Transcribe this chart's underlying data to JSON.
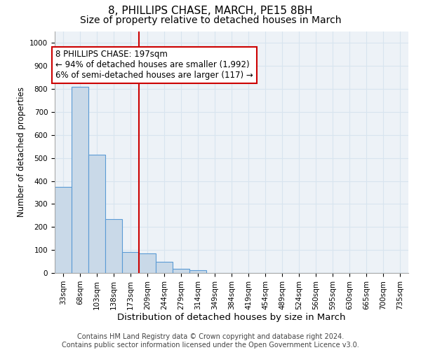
{
  "title": "8, PHILLIPS CHASE, MARCH, PE15 8BH",
  "subtitle": "Size of property relative to detached houses in March",
  "xlabel": "Distribution of detached houses by size in March",
  "ylabel": "Number of detached properties",
  "bar_labels": [
    "33sqm",
    "68sqm",
    "103sqm",
    "138sqm",
    "173sqm",
    "209sqm",
    "244sqm",
    "279sqm",
    "314sqm",
    "349sqm",
    "384sqm",
    "419sqm",
    "454sqm",
    "489sqm",
    "524sqm",
    "560sqm",
    "595sqm",
    "630sqm",
    "665sqm",
    "700sqm",
    "735sqm"
  ],
  "bar_values": [
    375,
    810,
    515,
    235,
    90,
    85,
    50,
    18,
    12,
    0,
    0,
    0,
    0,
    0,
    0,
    0,
    0,
    0,
    0,
    0,
    0
  ],
  "bar_color": "#c9d9e8",
  "bar_edgecolor": "#5b9bd5",
  "bar_width": 1.0,
  "ylim": [
    0,
    1050
  ],
  "yticks": [
    0,
    100,
    200,
    300,
    400,
    500,
    600,
    700,
    800,
    900,
    1000
  ],
  "property_line_x": 4.52,
  "property_line_color": "#cc0000",
  "annotation_text": "8 PHILLIPS CHASE: 197sqm\n← 94% of detached houses are smaller (1,992)\n6% of semi-detached houses are larger (117) →",
  "annotation_box_color": "#cc0000",
  "annotation_text_fontsize": 8.5,
  "background_color": "#edf2f7",
  "grid_color": "#d8e4ef",
  "footer_text": "Contains HM Land Registry data © Crown copyright and database right 2024.\nContains public sector information licensed under the Open Government Licence v3.0.",
  "title_fontsize": 11,
  "subtitle_fontsize": 10,
  "xlabel_fontsize": 9.5,
  "ylabel_fontsize": 8.5,
  "tick_fontsize": 7.5,
  "footer_fontsize": 7
}
